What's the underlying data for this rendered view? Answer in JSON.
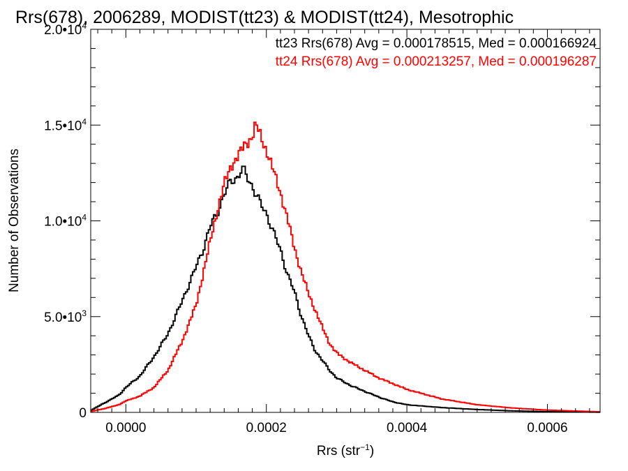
{
  "chart_data": {
    "type": "line",
    "title": "Rrs(678), 2006289, MODIST(tt23) & MODIST(tt24), Mesotrophic",
    "xlabel": {
      "base": "Rrs (str",
      "sup": "−1",
      "close": ")"
    },
    "ylabel": "Number of Observations",
    "xlim": [
      -5e-05,
      0.000675
    ],
    "ylim": [
      0,
      20000
    ],
    "grid": false,
    "legend_position": "top-right",
    "x_ticks": [
      {
        "value": 0.0,
        "label": "0.0000"
      },
      {
        "value": 0.0002,
        "label": "0.0002"
      },
      {
        "value": 0.0004,
        "label": "0.0004"
      },
      {
        "value": 0.0006,
        "label": "0.0006"
      }
    ],
    "y_ticks": [
      {
        "value": 0,
        "base": "0",
        "sup": ""
      },
      {
        "value": 5000,
        "base": "5.0•10",
        "sup": "3"
      },
      {
        "value": 10000,
        "base": "1.0•10",
        "sup": "4"
      },
      {
        "value": 15000,
        "base": "1.5•10",
        "sup": "4"
      },
      {
        "value": 20000,
        "base": "2.0•10",
        "sup": "4"
      }
    ],
    "series": [
      {
        "name": "tt23",
        "color": "#000000",
        "legend_text": "tt23 Rrs(678) Avg = 0.000178515, Med = 0.000166924",
        "x": [
          -5e-05,
          -3e-05,
          -1e-05,
          0.0,
          2e-05,
          4e-05,
          6e-05,
          8e-05,
          0.0001,
          0.00011,
          0.00012,
          0.00013,
          0.00014,
          0.00015,
          0.00016,
          0.000165,
          0.00017,
          0.00018,
          0.00019,
          0.0002,
          0.00021,
          0.00022,
          0.00023,
          0.00024,
          0.00025,
          0.00026,
          0.00027,
          0.00028,
          0.00029,
          0.0003,
          0.00032,
          0.00034,
          0.00036,
          0.00038,
          0.0004,
          0.00045,
          0.0005,
          0.00055,
          0.0006,
          0.00065,
          0.000675
        ],
        "y": [
          100,
          500,
          900,
          1300,
          1900,
          2900,
          4100,
          5800,
          7600,
          8500,
          9700,
          10400,
          11400,
          12100,
          12300,
          12700,
          12500,
          11800,
          11000,
          10400,
          9400,
          8500,
          7200,
          6300,
          5000,
          4000,
          3200,
          2700,
          2200,
          1800,
          1400,
          1100,
          800,
          550,
          400,
          250,
          150,
          80,
          40,
          20,
          10
        ]
      },
      {
        "name": "tt24",
        "color": "#ff0000",
        "legend_text": "tt24 Rrs(678) Avg = 0.000213257, Med = 0.000196287",
        "x": [
          -5e-05,
          -3e-05,
          -1e-05,
          0.0,
          2e-05,
          4e-05,
          6e-05,
          8e-05,
          0.0001,
          0.00012,
          0.00013,
          0.00014,
          0.00015,
          0.00016,
          0.00017,
          0.00018,
          0.000185,
          0.00019,
          0.0002,
          0.00021,
          0.00022,
          0.00023,
          0.00024,
          0.00025,
          0.00026,
          0.00027,
          0.00028,
          0.00029,
          0.0003,
          0.00032,
          0.00034,
          0.00036,
          0.00038,
          0.0004,
          0.00042,
          0.00045,
          0.0005,
          0.00055,
          0.0006,
          0.00065,
          0.000675
        ],
        "y": [
          50,
          200,
          400,
          600,
          850,
          1300,
          2200,
          3700,
          5600,
          8900,
          10500,
          11900,
          12900,
          13400,
          14000,
          14400,
          15000,
          14600,
          13700,
          12600,
          11500,
          10100,
          8600,
          7300,
          6200,
          5300,
          4400,
          3600,
          3100,
          2600,
          2200,
          1800,
          1500,
          1200,
          1000,
          700,
          400,
          230,
          120,
          60,
          30
        ]
      }
    ]
  }
}
